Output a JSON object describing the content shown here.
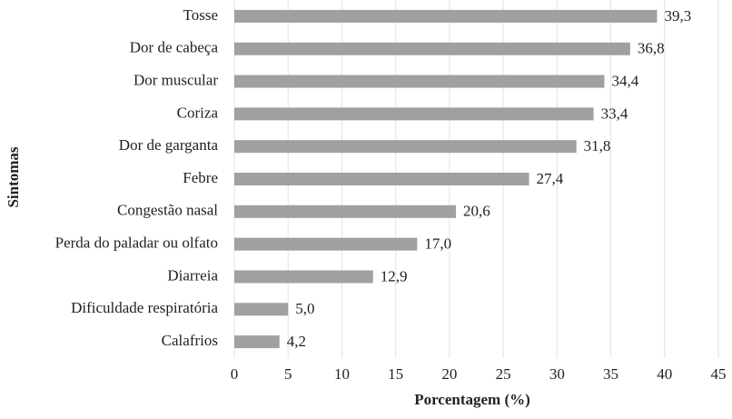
{
  "chart_data": {
    "type": "hbar",
    "xlabel": "Porcentagem (%)",
    "ylabel": "Sintomas",
    "categories": [
      "Tosse",
      "Dor de cabeça",
      "Dor muscular",
      "Coriza",
      "Dor de garganta",
      "Febre",
      "Congestão nasal",
      "Perda do paladar ou olfato",
      "Diarreia",
      "Dificuldade respiratória",
      "Calafrios"
    ],
    "values": [
      39.3,
      36.8,
      34.4,
      33.4,
      31.8,
      27.4,
      20.6,
      17.0,
      12.9,
      5.0,
      4.2
    ],
    "value_labels": [
      "39,3",
      "36,8",
      "34,4",
      "33,4",
      "31,8",
      "27,4",
      "20,6",
      "17,0",
      "12,9",
      "5,0",
      "4,2"
    ],
    "color": "#a0a0a0",
    "xlim": [
      0,
      45
    ],
    "xticks": [
      0,
      5,
      10,
      15,
      20,
      25,
      30,
      35,
      40,
      45
    ],
    "grid": true
  }
}
